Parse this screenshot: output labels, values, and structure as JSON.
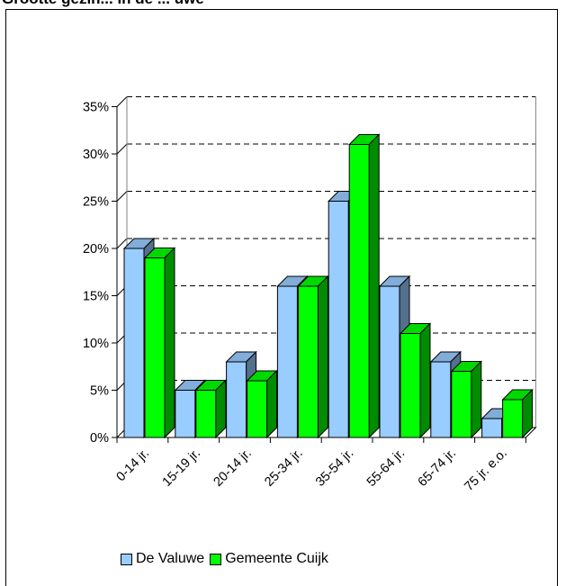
{
  "title": "Grootte gezin... in de ... uwe",
  "chart_data": {
    "type": "bar",
    "categories": [
      "0-14 jr.",
      "15-19 jr.",
      "20-14 jr.",
      "25-34 jr.",
      "35-54 jr.",
      "55-64 jr.",
      "65-74 jr.",
      "75 jr. e.o."
    ],
    "series": [
      {
        "name": "De Valuwe",
        "values": [
          20,
          5,
          8,
          16,
          25,
          16,
          8,
          2
        ],
        "color": "#99ccff"
      },
      {
        "name": "Gemeente Cuijk",
        "values": [
          19,
          5,
          6,
          16,
          31,
          11,
          7,
          4
        ],
        "color": "#00ff00"
      }
    ],
    "y_ticks": [
      "0%",
      "5%",
      "10%",
      "15%",
      "20%",
      "25%",
      "30%",
      "35%"
    ],
    "ylim": [
      0,
      35
    ],
    "grid": "dashed horizontal",
    "legend": "bottom"
  }
}
